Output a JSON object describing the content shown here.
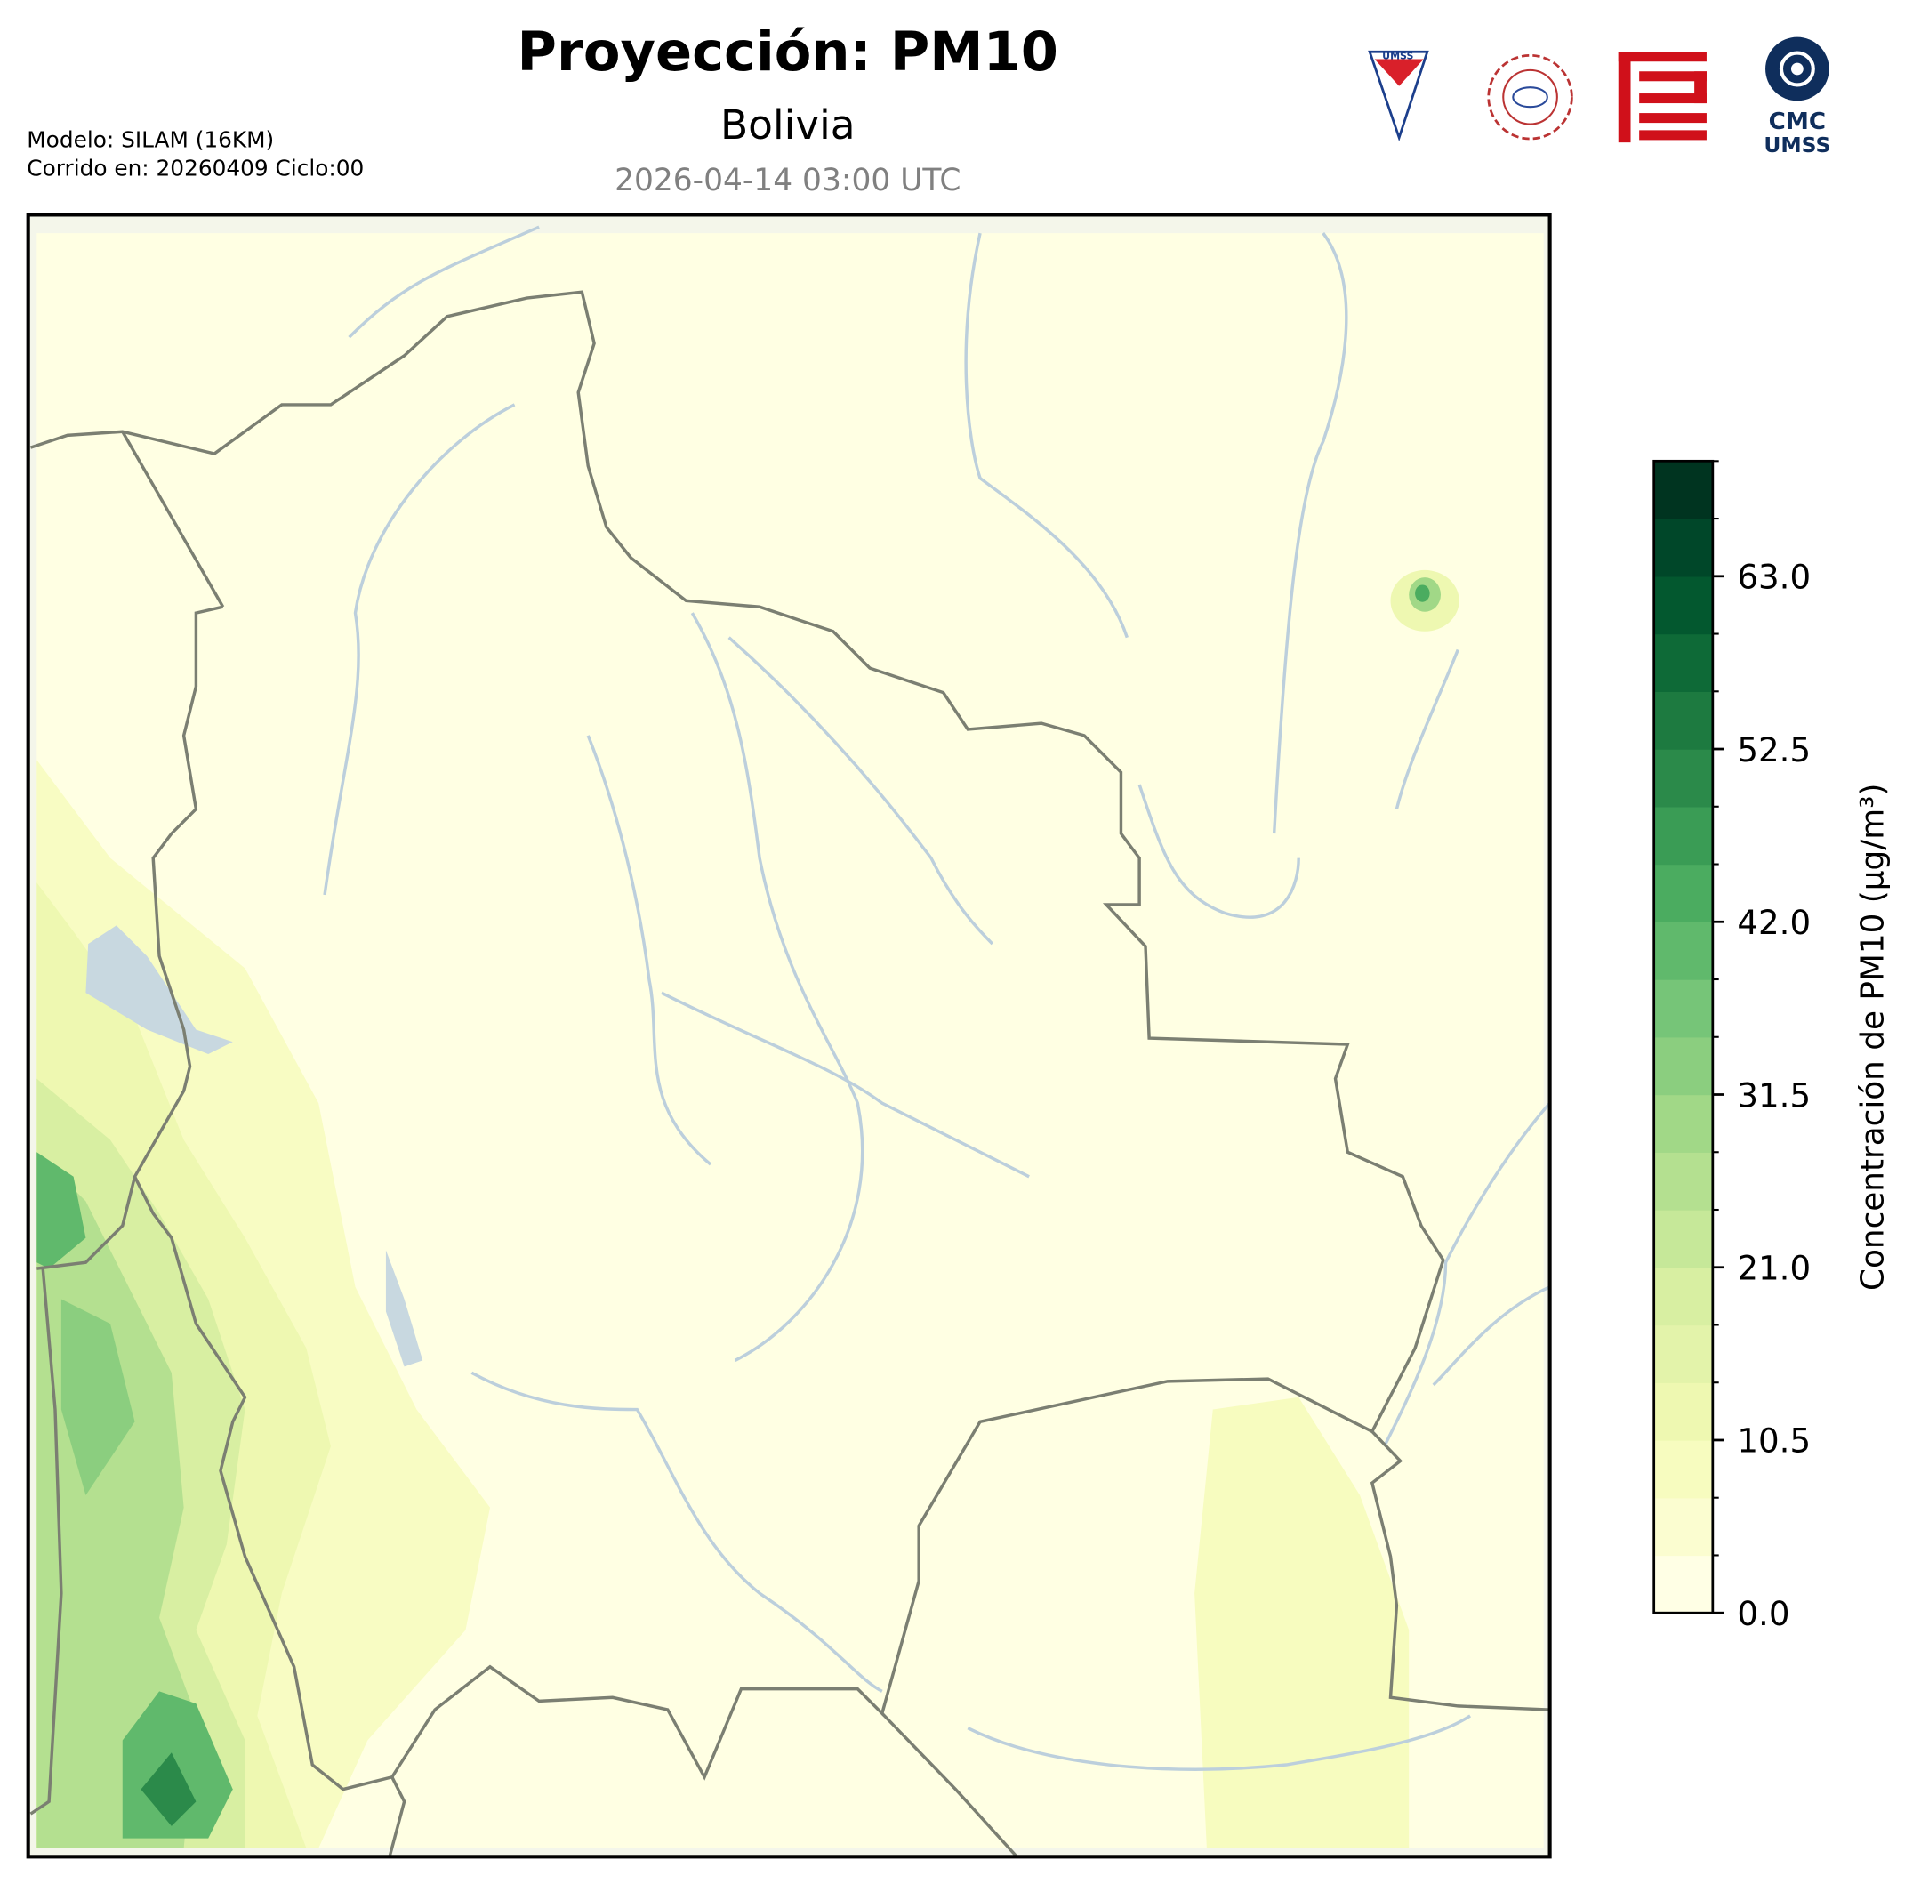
{
  "header": {
    "title": "Proyección: PM10",
    "subtitle": "Bolivia",
    "valid_time": "2026-04-14 03:00 UTC",
    "model": "Modelo: SILAM (16KM)",
    "run": "Corrido en: 20260409 Ciclo:00"
  },
  "logos": {
    "umss_shield": "UMSS",
    "cmc_top": "CMC",
    "cmc_bottom": "UMSS"
  },
  "colorbar": {
    "label": "Concentración de PM10 (µg/m³)",
    "levels": [
      0,
      3.5,
      7,
      10.5,
      14,
      17.5,
      21,
      24.5,
      28,
      31.5,
      35,
      38.5,
      42,
      45.5,
      49,
      52.5,
      56,
      59.5,
      63,
      66.5,
      70
    ],
    "colors": [
      "#ffffe5",
      "#fbfdd0",
      "#f7fcbf",
      "#eef8b1",
      "#e3f3aa",
      "#d8efa2",
      "#c6e899",
      "#b4e090",
      "#a1d887",
      "#8bce7f",
      "#76c578",
      "#60b96c",
      "#4bac60",
      "#3a9c55",
      "#2b8a4a",
      "#1d7a40",
      "#0e6a37",
      "#03582f",
      "#004729",
      "#003420"
    ],
    "ticks": [
      {
        "value": 0,
        "label": "0.0"
      },
      10.5,
      {
        "value": 21,
        "label": "21.0"
      },
      31.5,
      {
        "value": 42,
        "label": "42.0"
      },
      52.5,
      {
        "value": 63,
        "label": "63.0"
      }
    ]
  }
}
